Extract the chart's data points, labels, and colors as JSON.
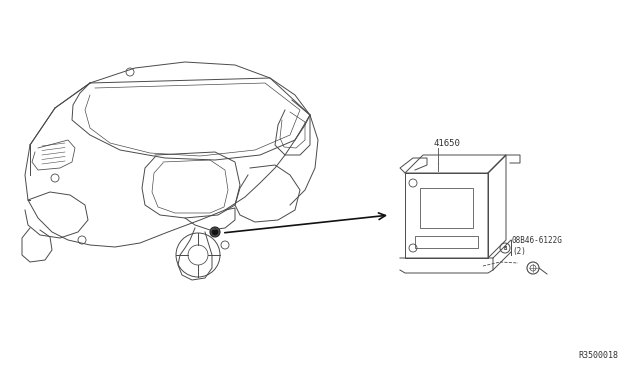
{
  "bg_color": "#ffffff",
  "line_color": "#4a4a4a",
  "text_color": "#333333",
  "arrow_color": "#111111",
  "part_number_41650": "41650",
  "part_number_bolt": "08B46-6122G\n(2)",
  "diagram_code": "R3500018",
  "fig_width": 6.4,
  "fig_height": 3.72,
  "dpi": 100
}
